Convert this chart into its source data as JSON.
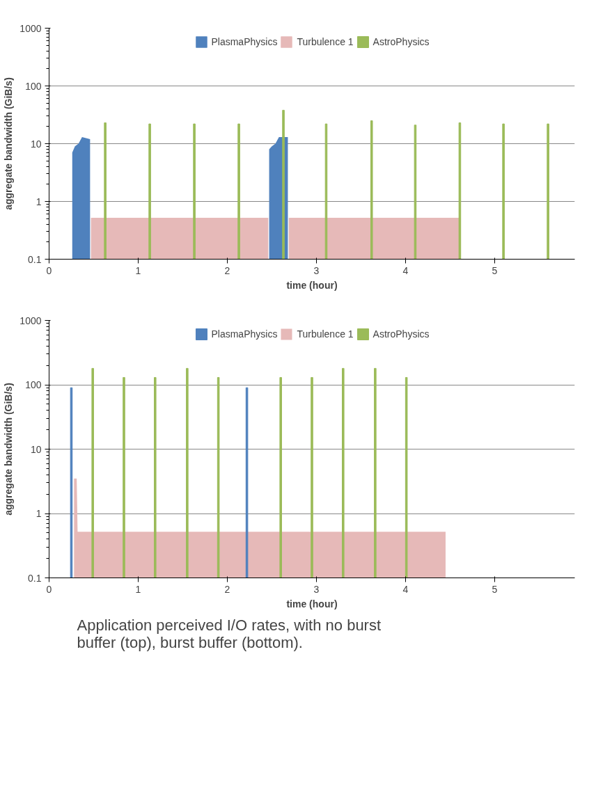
{
  "chart_data": [
    {
      "type": "bar",
      "xlabel": "time (hour)",
      "ylabel": "aggregate bandwidth (GiB/s)",
      "log": true,
      "grid": "y",
      "legend": "top",
      "xlim": [
        0,
        5.9
      ],
      "ylim": [
        0.1,
        1000
      ],
      "xticks": [
        0,
        1,
        2,
        3,
        4,
        5
      ],
      "yticks": [
        0.1,
        1,
        10,
        100,
        1000
      ],
      "series": [
        {
          "name": "PlasmaPhysics",
          "color": "#4f81bd",
          "type": "area",
          "x": [
            0.26,
            0.29,
            0.33,
            0.37,
            0.46,
            1.5,
            2.47,
            2.5,
            2.54,
            2.58,
            2.68
          ],
          "values": [
            7,
            9,
            10,
            13,
            12,
            null,
            8,
            9,
            10,
            13,
            13
          ]
        },
        {
          "name": "Turbulence 1",
          "color": "#e6b9b8",
          "type": "area",
          "x": [
            0.47,
            2.46,
            2.56,
            2.69,
            4.62
          ],
          "values": [
            0.52,
            0.52,
            null,
            0.52,
            0.52
          ]
        },
        {
          "name": "AstroPhysics",
          "color": "#9bbb59",
          "x": [
            0.63,
            1.13,
            1.63,
            2.13,
            2.63,
            3.11,
            3.62,
            4.11,
            4.61,
            5.1,
            5.6
          ],
          "values": [
            23,
            22,
            22,
            22,
            38,
            22,
            25,
            21,
            23,
            22,
            22
          ]
        }
      ]
    },
    {
      "type": "bar",
      "xlabel": "time (hour)",
      "ylabel": "aggregate bandwidth (GiB/s)",
      "log": true,
      "grid": "y",
      "legend": "top",
      "xlim": [
        0,
        5.9
      ],
      "ylim": [
        0.1,
        1000
      ],
      "xticks": [
        0,
        1,
        2,
        3,
        4,
        5
      ],
      "yticks": [
        0.1,
        1,
        10,
        100,
        1000
      ],
      "annotations": [
        "Application perceived I/O rates, with no burst buffer (top), burst buffer (bottom)."
      ],
      "series": [
        {
          "name": "PlasmaPhysics",
          "color": "#4f81bd",
          "type": "bar",
          "x": [
            0.25,
            2.22
          ],
          "values": [
            90,
            90
          ]
        },
        {
          "name": "Turbulence 1",
          "color": "#e6b9b8",
          "type": "area",
          "x": [
            0.28,
            0.31,
            0.32,
            4.45
          ],
          "values": [
            3.5,
            3.5,
            0.52,
            0.52
          ]
        },
        {
          "name": "AstroPhysics",
          "color": "#9bbb59",
          "x": [
            0.49,
            0.84,
            1.19,
            1.55,
            1.9,
            2.6,
            2.95,
            3.3,
            3.66,
            4.01
          ],
          "values": [
            180,
            130,
            130,
            180,
            130,
            130,
            130,
            180,
            180,
            130
          ]
        }
      ]
    }
  ]
}
